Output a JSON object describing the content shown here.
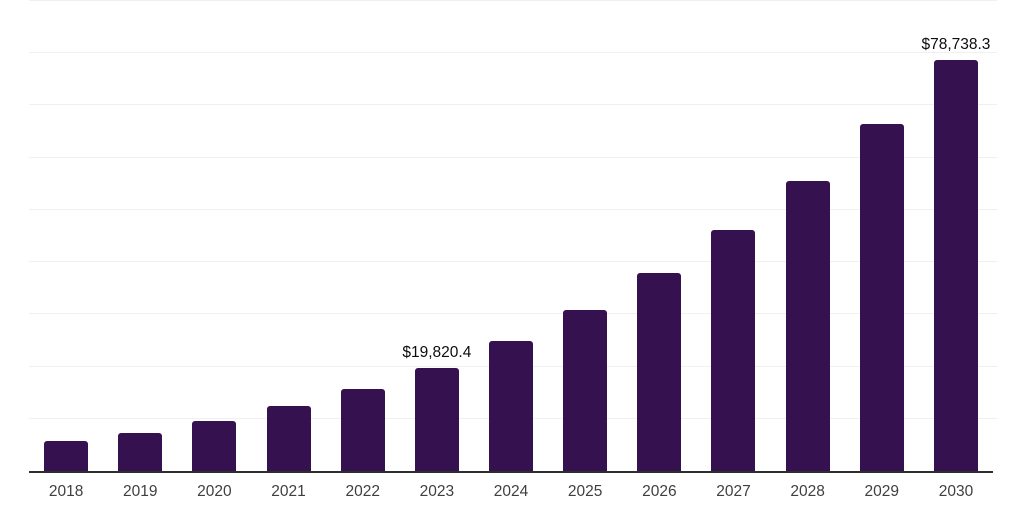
{
  "chart_data": {
    "type": "bar",
    "title": "",
    "xlabel": "",
    "ylabel": "",
    "categories": [
      "2018",
      "2019",
      "2020",
      "2021",
      "2022",
      "2023",
      "2024",
      "2025",
      "2026",
      "2027",
      "2028",
      "2029",
      "2030"
    ],
    "values": [
      5700,
      7200,
      9650,
      12450,
      15650,
      19820.4,
      24900,
      30850,
      37900,
      46150,
      55550,
      66500,
      78738.3
    ],
    "value_labels": [
      "",
      "",
      "",
      "",
      "",
      "$19,820.4",
      "",
      "",
      "",
      "",
      "",
      "",
      "$78,738.3"
    ],
    "ylim": [
      0,
      90000
    ],
    "gridline_step": 10000,
    "grid": true,
    "legend": false,
    "y_tick_labels_visible": false
  },
  "colors": {
    "background": "#ffffff",
    "bar": "#36114F",
    "gridline": "#f0f0f0",
    "axis_line": "#2e2e2e",
    "tick_label": "#3f3f3f",
    "value_label": "#0d0d0d"
  }
}
